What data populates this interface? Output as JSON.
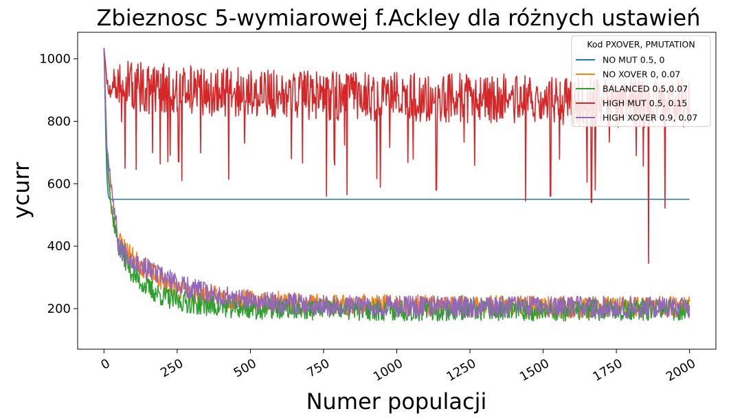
{
  "chart_data": {
    "type": "line",
    "title": "Zbieznosc 5-wymiarowej f.Ackley dla różnych ustawień",
    "xlabel": "Numer populacji",
    "ylabel": "ycurr",
    "xlim": [
      -90,
      2090
    ],
    "ylim": [
      70,
      1085
    ],
    "x_ticks": [
      0,
      250,
      500,
      750,
      1000,
      1250,
      1500,
      1750,
      2000
    ],
    "y_ticks": [
      200,
      400,
      600,
      800,
      1000
    ],
    "legend": {
      "title": "Kod PXOVER, PMUTATION",
      "placement": "top-right"
    },
    "series": [
      {
        "name": "NO MUT 0.5, 0",
        "color": "#1f77b4",
        "description": "rapid drop then flat plateau",
        "x": [
          0,
          3,
          6,
          9,
          12,
          15,
          20,
          2000
        ],
        "y": [
          1035,
          900,
          760,
          650,
          590,
          560,
          550,
          550
        ]
      },
      {
        "name": "NO XOVER 0, 0.07",
        "color": "#ff7f0e",
        "x": [
          0,
          10,
          25,
          50,
          100,
          150,
          200,
          250,
          300,
          400,
          500,
          750,
          1000,
          1250,
          1500,
          1750,
          2000
        ],
        "y": [
          1035,
          700,
          520,
          420,
          360,
          320,
          290,
          265,
          250,
          235,
          225,
          215,
          210,
          208,
          205,
          205,
          205
        ],
        "noise": 35
      },
      {
        "name": "BALANCED 0.5,0.07",
        "color": "#2ca02c",
        "x": [
          0,
          10,
          25,
          50,
          100,
          150,
          200,
          250,
          300,
          400,
          500,
          750,
          1000,
          1250,
          1500,
          1750,
          2000
        ],
        "y": [
          1035,
          690,
          520,
          400,
          310,
          265,
          240,
          225,
          218,
          205,
          200,
          198,
          195,
          195,
          195,
          195,
          195
        ],
        "noise": 35
      },
      {
        "name": "HIGH MUT 0.5, 0.15",
        "color": "#d62728",
        "x": [
          0,
          10,
          20,
          50,
          100,
          200,
          400,
          750,
          1000,
          1250,
          1500,
          1750,
          2000
        ],
        "y": [
          1035,
          930,
          880,
          920,
          910,
          905,
          895,
          880,
          880,
          875,
          870,
          860,
          860
        ],
        "noise": 80,
        "dips": [
          [
            255,
            670
          ],
          [
            640,
            680
          ],
          [
            760,
            560
          ],
          [
            830,
            565
          ],
          [
            1135,
            580
          ],
          [
            1440,
            545
          ],
          [
            1525,
            560
          ],
          [
            1665,
            540
          ],
          [
            1860,
            345
          ]
        ]
      },
      {
        "name": "HIGH XOVER 0.9, 0.07",
        "color": "#9467bd",
        "x": [
          0,
          10,
          25,
          50,
          100,
          150,
          200,
          250,
          300,
          400,
          500,
          750,
          1000,
          1250,
          1500,
          1750,
          2000
        ],
        "y": [
          1035,
          720,
          600,
          400,
          355,
          325,
          300,
          280,
          262,
          240,
          222,
          212,
          208,
          205,
          205,
          205,
          205
        ],
        "noise": 35
      }
    ]
  }
}
